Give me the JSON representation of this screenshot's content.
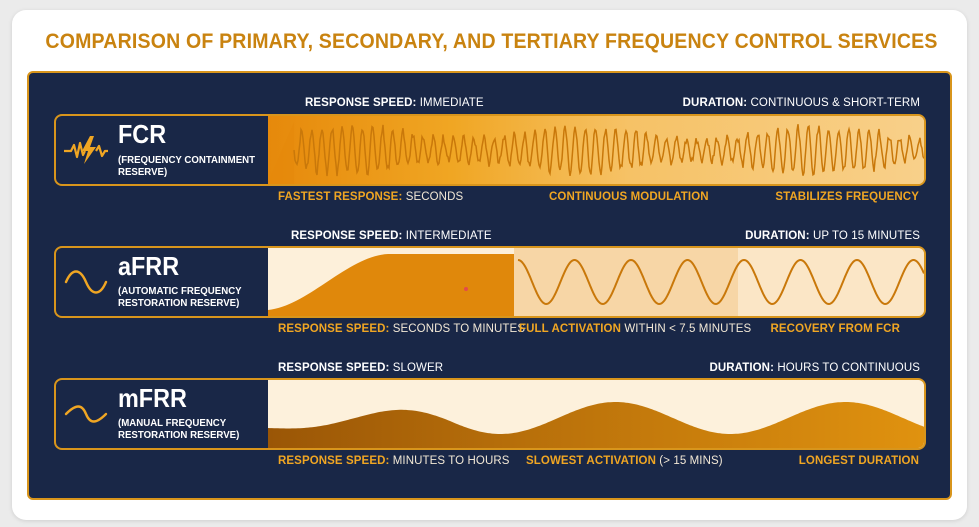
{
  "title": "COMPARISON OF PRIMARY, SECONDARY, AND TERTIARY FREQUENCY CONTROL SERVICES",
  "colors": {
    "navy": "#192747",
    "gold": "#d8951c",
    "orange": "#f0a623",
    "cream": "#fdefd8",
    "brown": "#a96508"
  },
  "rows": [
    {
      "abbr": "FCR",
      "full_line1": "(FREQUENCY CONTAINMENT",
      "full_line2": "RESERVE)",
      "icon": "lightning-wave-icon",
      "top_left_key": "RESPONSE SPEED:",
      "top_left_value": "IMMEDIATE",
      "top_right_key": "DURATION:",
      "top_right_value": "CONTINUOUS & SHORT-TERM",
      "bottom": [
        {
          "key": "FASTEST RESPONSE:",
          "value": "SECONDS"
        },
        {
          "key": "CONTINUOUS MODULATION",
          "value": ""
        },
        {
          "key": "STABILIZES FREQUENCY",
          "value": ""
        }
      ]
    },
    {
      "abbr": "aFRR",
      "full_line1": "(AUTOMATIC FREQUENCY",
      "full_line2": "RESTORATION RESERVE)",
      "icon": "sine-wave-icon",
      "top_left_key": "RESPONSE SPEED:",
      "top_left_value": "INTERMEDIATE",
      "top_right_key": "DURATION:",
      "top_right_value": "UP TO 15 MINUTES",
      "bottom": [
        {
          "key": "RESPONSE SPEED:",
          "value": "SECONDS TO MINUTES"
        },
        {
          "key": "FULL ACTIVATION",
          "value": "WITHIN < 7.5 MINUTES"
        },
        {
          "key": "RECOVERY FROM FCR",
          "value": ""
        }
      ]
    },
    {
      "abbr": "mFRR",
      "full_line1": "(MANUAL FREQUENCY",
      "full_line2": "RESTORATION RESERVE)",
      "icon": "slow-wave-icon",
      "top_left_key": "RESPONSE SPEED:",
      "top_left_value": "SLOWER",
      "top_right_key": "DURATION:",
      "top_right_value": "HOURS TO CONTINUOUS",
      "bottom": [
        {
          "key": "RESPONSE SPEED:",
          "value": "MINUTES TO HOURS"
        },
        {
          "key": "SLOWEST ACTIVATION",
          "value": "(> 15 MINS)"
        },
        {
          "key": "LONGEST DURATION",
          "value": ""
        }
      ]
    }
  ]
}
